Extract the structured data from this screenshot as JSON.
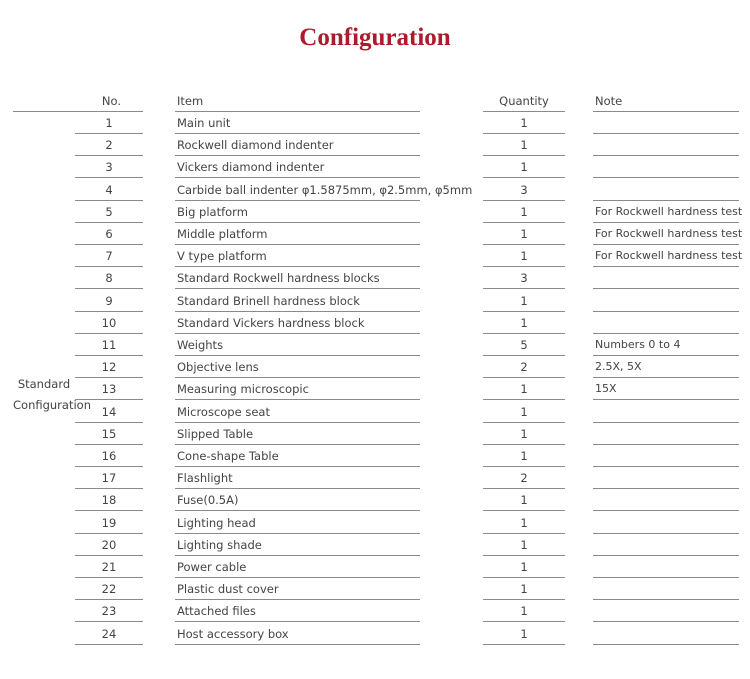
{
  "title": "Configuration",
  "headers": {
    "no": "No.",
    "item": "Item",
    "quantity": "Quantity",
    "note": "Note"
  },
  "group_label": [
    "Standard",
    "Configuration"
  ],
  "rows": [
    {
      "no": "1",
      "item": "Main unit",
      "qty": "1",
      "note": ""
    },
    {
      "no": "2",
      "item": "Rockwell diamond indenter",
      "qty": "1",
      "note": ""
    },
    {
      "no": "3",
      "item": "Vickers diamond indenter",
      "qty": "1",
      "note": ""
    },
    {
      "no": "4",
      "item": "Carbide ball indenter φ1.5875mm, φ2.5mm, φ5mm",
      "qty": "3",
      "note": ""
    },
    {
      "no": "5",
      "item": "Big platform",
      "qty": "1",
      "note": "For Rockwell hardness test"
    },
    {
      "no": "6",
      "item": "Middle platform",
      "qty": "1",
      "note": "For Rockwell hardness test"
    },
    {
      "no": "7",
      "item": "V type platform",
      "qty": "1",
      "note": "For Rockwell hardness test"
    },
    {
      "no": "8",
      "item": "Standard Rockwell hardness blocks",
      "qty": "3",
      "note": ""
    },
    {
      "no": "9",
      "item": "Standard Brinell hardness block",
      "qty": "1",
      "note": ""
    },
    {
      "no": "10",
      "item": "Standard Vickers hardness block",
      "qty": "1",
      "note": ""
    },
    {
      "no": "11",
      "item": "Weights",
      "qty": "5",
      "note": "Numbers 0 to 4"
    },
    {
      "no": "12",
      "item": "Objective lens",
      "qty": "2",
      "note": "2.5X, 5X"
    },
    {
      "no": "13",
      "item": "Measuring microscopic",
      "qty": "1",
      "note": "15X"
    },
    {
      "no": "14",
      "item": "Microscope seat",
      "qty": "1",
      "note": ""
    },
    {
      "no": "15",
      "item": "Slipped Table",
      "qty": "1",
      "note": ""
    },
    {
      "no": "16",
      "item": "Cone-shape Table",
      "qty": "1",
      "note": ""
    },
    {
      "no": "17",
      "item": "Flashlight",
      "qty": "2",
      "note": ""
    },
    {
      "no": "18",
      "item": "Fuse(0.5A)",
      "qty": "1",
      "note": ""
    },
    {
      "no": "19",
      "item": "Lighting head",
      "qty": "1",
      "note": ""
    },
    {
      "no": "20",
      "item": "Lighting shade",
      "qty": "1",
      "note": ""
    },
    {
      "no": "21",
      "item": "Power cable",
      "qty": "1",
      "note": ""
    },
    {
      "no": "22",
      "item": "Plastic dust cover",
      "qty": "1",
      "note": ""
    },
    {
      "no": "23",
      "item": "Attached files",
      "qty": "1",
      "note": ""
    },
    {
      "no": "24",
      "item": "Host accessory box",
      "qty": "1",
      "note": ""
    }
  ]
}
